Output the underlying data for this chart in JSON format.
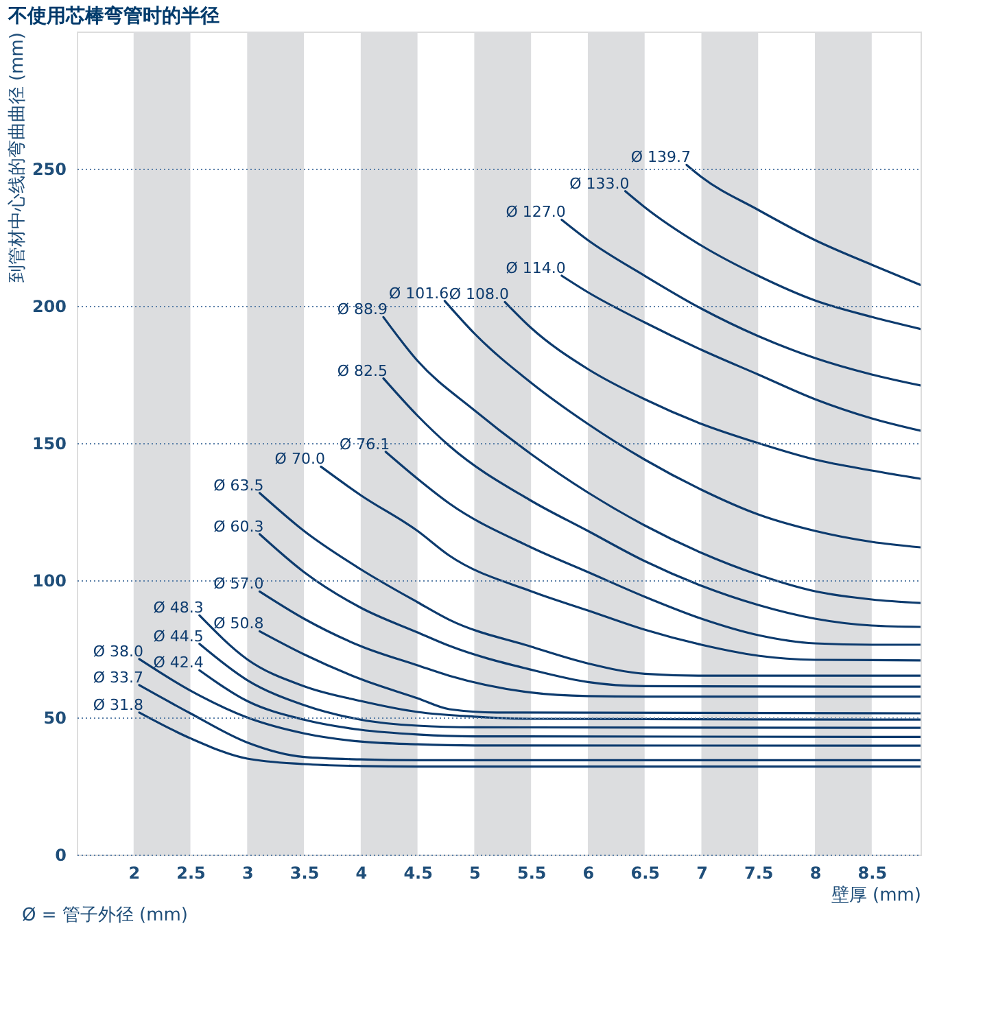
{
  "chart_data": {
    "type": "line",
    "title": "不使用芯棒弯管时的半径",
    "xlabel": "壁厚 (mm)",
    "ylabel": "到管材中心线的弯曲曲径 (mm)",
    "annotations": [
      "Ø = 管子外径 (mm)"
    ],
    "xlim": [
      1.5,
      8.93
    ],
    "ylim": [
      0,
      300
    ],
    "xticks": [
      2,
      2.5,
      3,
      3.5,
      4,
      4.5,
      5,
      5.5,
      6,
      6.5,
      7,
      7.5,
      8,
      8.5
    ],
    "yticks": [
      0,
      50,
      100,
      150,
      200,
      250
    ],
    "grid": "y",
    "marker": "none",
    "line_style": "solid",
    "bands": [
      {
        "axis": "x",
        "from": 2,
        "to": 2.5,
        "color": "#dcdddf"
      },
      {
        "axis": "x",
        "from": 3,
        "to": 3.5,
        "color": "#dcdddf"
      },
      {
        "axis": "x",
        "from": 4,
        "to": 4.5,
        "color": "#dcdddf"
      },
      {
        "axis": "x",
        "from": 5,
        "to": 5.5,
        "color": "#dcdddf"
      },
      {
        "axis": "x",
        "from": 6,
        "to": 6.5,
        "color": "#dcdddf"
      },
      {
        "axis": "x",
        "from": 7,
        "to": 7.5,
        "color": "#dcdddf"
      },
      {
        "axis": "x",
        "from": 8,
        "to": 8.5,
        "color": "#dcdddf"
      }
    ],
    "series": [
      {
        "name": "Ø 31.8",
        "color": "#0d3b6e",
        "x": [
          2.05,
          2.5,
          3,
          3.5,
          4,
          4.5,
          8.93
        ],
        "values": [
          51.8,
          42.4,
          35,
          33,
          32.3,
          32.1,
          32.1
        ]
      },
      {
        "name": "Ø 33.7",
        "color": "#0d3b6e",
        "x": [
          2.05,
          2.5,
          3,
          3.5,
          4,
          4.5,
          8.93
        ],
        "values": [
          61.8,
          51.5,
          40.9,
          35.6,
          34.7,
          34.4,
          34.4
        ]
      },
      {
        "name": "Ø 38.0",
        "color": "#0d3b6e",
        "x": [
          2.05,
          2.5,
          3,
          3.5,
          4,
          4.5,
          5,
          8.93
        ],
        "values": [
          71.3,
          59.8,
          50,
          44.2,
          41.2,
          40.2,
          39.8,
          39.7
        ]
      },
      {
        "name": "Ø 42.4",
        "color": "#0d3b6e",
        "x": [
          2.58,
          3,
          3.5,
          4,
          4.5,
          5,
          8.93
        ],
        "values": [
          67.2,
          56,
          49.2,
          45.5,
          43.8,
          43.1,
          42.9
        ]
      },
      {
        "name": "Ø 44.5",
        "color": "#0d3b6e",
        "x": [
          2.58,
          3,
          3.5,
          4,
          4.5,
          5,
          8.93
        ],
        "values": [
          76.8,
          63.6,
          54.5,
          49.2,
          47,
          46.4,
          46.2
        ]
      },
      {
        "name": "Ø 48.3",
        "color": "#0d3b6e",
        "x": [
          2.58,
          3,
          3.5,
          4,
          4.5,
          5,
          5.5,
          8.93
        ],
        "values": [
          87.2,
          71.2,
          61.4,
          56,
          52,
          50.3,
          49.5,
          49.2
        ]
      },
      {
        "name": "Ø 50.8",
        "color": "#0d3b6e",
        "x": [
          3.11,
          3.5,
          4,
          4.5,
          4.78,
          5.2,
          8.93
        ],
        "values": [
          81.4,
          73,
          64,
          57,
          53,
          51.8,
          51.5
        ]
      },
      {
        "name": "Ø 57.0",
        "color": "#0d3b6e",
        "x": [
          3.11,
          3.5,
          4,
          4.5,
          4.78,
          5.5,
          6,
          6.5,
          8.93
        ],
        "values": [
          95.9,
          86,
          76,
          69,
          65.2,
          59.1,
          57.8,
          57.6,
          57.6
        ]
      },
      {
        "name": "Ø 60.3",
        "color": "#0d3b6e",
        "x": [
          3.11,
          3.5,
          4,
          4.5,
          4.78,
          5.5,
          6,
          6.5,
          8.93
        ],
        "values": [
          116.8,
          103,
          90,
          81,
          76.1,
          67.4,
          62.9,
          61.4,
          61.2
        ]
      },
      {
        "name": "Ø 63.5",
        "color": "#0d3b6e",
        "x": [
          3.11,
          3.5,
          4,
          4.5,
          4.78,
          5.5,
          6,
          6.5,
          7,
          8.93
        ],
        "values": [
          131.8,
          118,
          104,
          92,
          85.6,
          75.8,
          69.7,
          65.9,
          65.2,
          65.2
        ]
      },
      {
        "name": "Ø 70.0",
        "color": "#0d3b6e",
        "x": [
          3.65,
          4,
          4.5,
          4.78,
          5.5,
          6,
          6.5,
          7,
          7.5,
          8,
          8.93
        ],
        "values": [
          141.4,
          131,
          118,
          109,
          96,
          89,
          82,
          76.5,
          72.5,
          71,
          70.8
        ]
      },
      {
        "name": "Ø 76.1",
        "color": "#0d3b6e",
        "x": [
          4.22,
          4.5,
          4.78,
          5.5,
          6,
          6.5,
          7,
          7.5,
          8,
          8.5,
          8.93
        ],
        "values": [
          146.8,
          137,
          128,
          112,
          103,
          94,
          86,
          80,
          77,
          76.5,
          76.5
        ]
      },
      {
        "name": "Ø 82.5",
        "color": "#0d3b6e",
        "x": [
          4.2,
          4.5,
          4.78,
          5.5,
          6,
          6.5,
          7,
          7.5,
          8,
          8.5,
          8.93
        ],
        "values": [
          173.6,
          160,
          149,
          129,
          118,
          107,
          98,
          91,
          86,
          83.5,
          83
        ]
      },
      {
        "name": "Ø 88.9",
        "color": "#0d3b6e",
        "x": [
          4.2,
          4.5,
          5,
          5.5,
          6,
          6.5,
          7,
          7.5,
          8,
          8.5,
          8.93
        ],
        "values": [
          195.9,
          180,
          162,
          146,
          132,
          120,
          110,
          102,
          96,
          93,
          91.7
        ]
      },
      {
        "name": "Ø 101.6",
        "color": "#0d3b6e",
        "x": [
          4.74,
          5,
          5.5,
          6,
          6.5,
          7,
          7.5,
          8,
          8.5,
          8.93
        ],
        "values": [
          201.8,
          190,
          172,
          157,
          144,
          133,
          124,
          118,
          114,
          112
        ]
      },
      {
        "name": "Ø 108.0",
        "color": "#0d3b6e",
        "x": [
          5.27,
          5.5,
          6,
          6.5,
          7,
          7.5,
          8,
          8.5,
          8.93
        ],
        "values": [
          201.4,
          192,
          177,
          166,
          157,
          150,
          144,
          140,
          137
        ]
      },
      {
        "name": "Ø 114.0",
        "color": "#0d3b6e",
        "x": [
          5.77,
          6,
          6.5,
          7,
          7.5,
          8,
          8.5,
          8.93
        ],
        "values": [
          211,
          205,
          194,
          184,
          175,
          166,
          159,
          154.5
        ]
      },
      {
        "name": "Ø 127.0",
        "color": "#0d3b6e",
        "x": [
          5.77,
          6,
          6.5,
          7,
          7.5,
          8,
          8.5,
          8.93
        ],
        "values": [
          231.4,
          224,
          211,
          199,
          189,
          181,
          175,
          171
        ]
      },
      {
        "name": "Ø 133.0",
        "color": "#0d3b6e",
        "x": [
          6.33,
          6.5,
          7,
          7.5,
          8,
          8.5,
          8.93
        ],
        "values": [
          241.8,
          236,
          222,
          211,
          202,
          196,
          191.6
        ]
      },
      {
        "name": "Ø 139.7",
        "color": "#0d3b6e",
        "x": [
          6.87,
          7,
          7.5,
          8,
          8.5,
          8.93
        ],
        "values": [
          251.4,
          247,
          235,
          224,
          215,
          207.6
        ]
      }
    ]
  }
}
